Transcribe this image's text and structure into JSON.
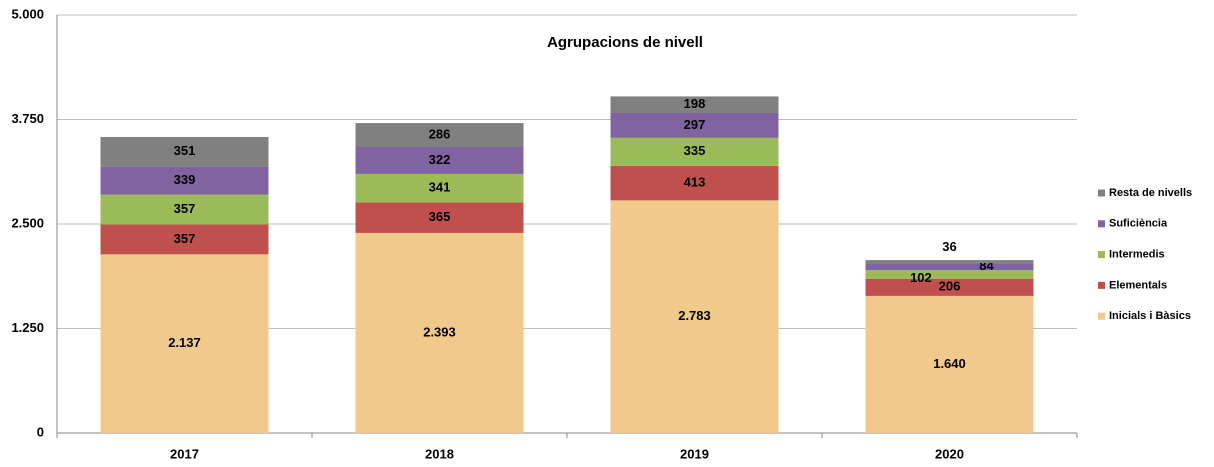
{
  "chart_data": {
    "type": "stacked_bar",
    "title": "Agrupacions de nivell",
    "categories": [
      "2017",
      "2018",
      "2019",
      "2020"
    ],
    "series": [
      {
        "name": "Inicials i Bàsics",
        "color": "#f1c98c",
        "values": [
          2137,
          2393,
          2783,
          1640
        ],
        "value_labels": [
          "2.137",
          "2.393",
          "2.783",
          "1.640"
        ]
      },
      {
        "name": "Elementals",
        "color": "#c0504d",
        "values": [
          357,
          365,
          413,
          206
        ]
      },
      {
        "name": "Intermedis",
        "color": "#9bbb59",
        "values": [
          357,
          341,
          335,
          102
        ]
      },
      {
        "name": "Suficiència",
        "color": "#8064a2",
        "values": [
          339,
          322,
          297,
          84
        ]
      },
      {
        "name": "Resta de nivells",
        "color": "#808080",
        "values": [
          351,
          286,
          198,
          36
        ]
      }
    ],
    "ylim": [
      0,
      5000
    ],
    "yticks": [
      0,
      {
        "value": 1250,
        "label": "1.250"
      },
      {
        "value": 2500,
        "label": "2.500"
      },
      {
        "value": 3750,
        "label": "3.750"
      },
      {
        "value": 5000,
        "label": "5.000"
      }
    ],
    "grid": true,
    "legend": "right"
  }
}
